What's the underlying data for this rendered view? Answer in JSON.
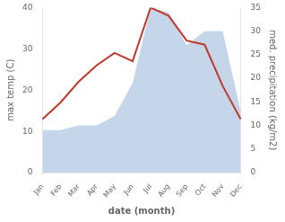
{
  "chart_data": {
    "type": "line",
    "categories": [
      "Jan",
      "Feb",
      "Mar",
      "Apr",
      "May",
      "Jun",
      "Jul",
      "Aug",
      "Sep",
      "Oct",
      "Nov",
      "Dec"
    ],
    "series": [
      {
        "type": "area",
        "axis": "y2",
        "color": "#c5d5ea",
        "values": [
          9,
          9,
          10,
          10,
          12,
          19,
          35,
          34,
          27,
          30,
          30,
          13
        ]
      },
      {
        "type": "line",
        "color": "#c0392b",
        "values": [
          13,
          17,
          22,
          26,
          29,
          27,
          40,
          38,
          32,
          31,
          21,
          13
        ]
      }
    ],
    "xlabel": "date (month)",
    "ylabel": "max temp (C)",
    "y2label": "med. precipitation (kg/m2)",
    "ylim": [
      0,
      40
    ],
    "yticks": [
      0,
      10,
      20,
      30,
      40
    ],
    "y2lim": [
      0,
      35
    ],
    "y2ticks": [
      0,
      5,
      10,
      15,
      20,
      25,
      30,
      35
    ],
    "grid": false
  }
}
